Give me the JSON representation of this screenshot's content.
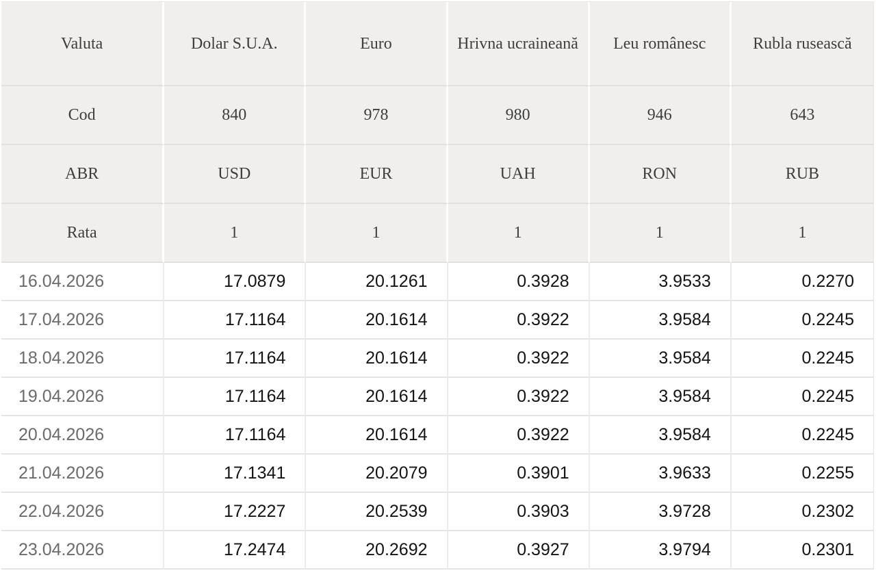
{
  "chart_data": {
    "type": "table",
    "header_rows": [
      {
        "label": "Valuta",
        "values": [
          "Dolar S.U.A.",
          "Euro",
          "Hrivna ucraineană",
          "Leu românesc",
          "Rubla rusească"
        ]
      },
      {
        "label": "Cod",
        "values": [
          "840",
          "978",
          "980",
          "946",
          "643"
        ]
      },
      {
        "label": "ABR",
        "values": [
          "USD",
          "EUR",
          "UAH",
          "RON",
          "RUB"
        ]
      },
      {
        "label": "Rata",
        "values": [
          "1",
          "1",
          "1",
          "1",
          "1"
        ]
      }
    ],
    "rows": [
      {
        "date": "16.04.2026",
        "values": [
          "17.0879",
          "20.1261",
          "0.3928",
          "3.9533",
          "0.2270"
        ]
      },
      {
        "date": "17.04.2026",
        "values": [
          "17.1164",
          "20.1614",
          "0.3922",
          "3.9584",
          "0.2245"
        ]
      },
      {
        "date": "18.04.2026",
        "values": [
          "17.1164",
          "20.1614",
          "0.3922",
          "3.9584",
          "0.2245"
        ]
      },
      {
        "date": "19.04.2026",
        "values": [
          "17.1164",
          "20.1614",
          "0.3922",
          "3.9584",
          "0.2245"
        ]
      },
      {
        "date": "20.04.2026",
        "values": [
          "17.1164",
          "20.1614",
          "0.3922",
          "3.9584",
          "0.2245"
        ]
      },
      {
        "date": "21.04.2026",
        "values": [
          "17.1341",
          "20.2079",
          "0.3901",
          "3.9633",
          "0.2255"
        ]
      },
      {
        "date": "22.04.2026",
        "values": [
          "17.2227",
          "20.2539",
          "0.3903",
          "3.9728",
          "0.2302"
        ]
      },
      {
        "date": "23.04.2026",
        "values": [
          "17.2474",
          "20.2692",
          "0.3927",
          "3.9794",
          "0.2301"
        ]
      }
    ],
    "layout": {
      "grid": true,
      "columns_count": 6,
      "first_column_role": "row-labels-and-dates"
    }
  },
  "colors": {
    "header_bg": "#f0efed",
    "header_text": "#3e3e3e",
    "date_text": "#6b6b6b",
    "value_text": "#141414",
    "header_h_border": "#e1dfdc",
    "header_v_gap": "#ffffff",
    "data_h_border": "#e6e5e3",
    "data_v_border": "#ebebe9",
    "outer_border": "#e7e5e3",
    "page_bg": "#ffffff"
  }
}
